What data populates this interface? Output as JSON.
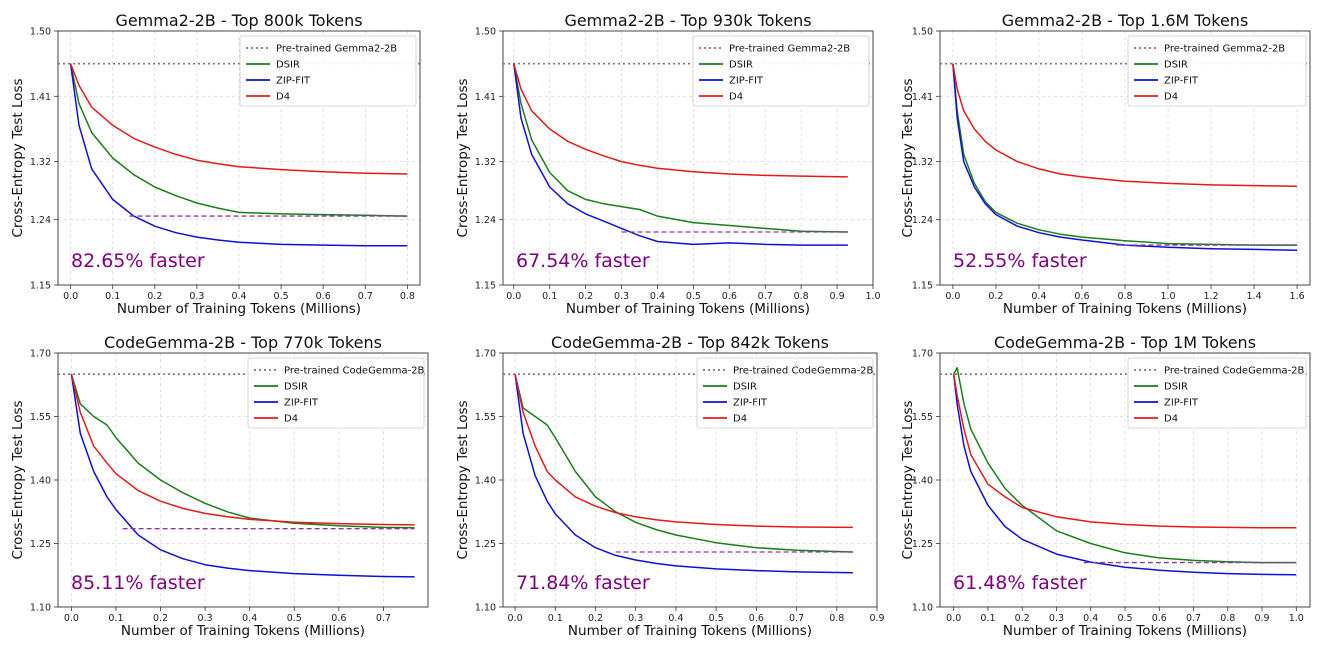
{
  "ylabel": "Cross-Entropy Test Loss",
  "xlabel": "Number of Training Tokens (Millions)",
  "colors": {
    "dsir": "#1a7f1a",
    "zipfit": "#1010d8",
    "d4": "#e61a1a",
    "baseline": "#777777",
    "marker": "#8e3a9e",
    "annotation": "#800080"
  },
  "chart_data": [
    {
      "type": "line",
      "title": "Gemma2-2B - Top 800k Tokens",
      "xlabel": "Number of Training Tokens (Millions)",
      "ylabel": "Cross-Entropy Test Loss",
      "xlim": [
        -0.03,
        0.83
      ],
      "ylim": [
        1.15,
        1.5
      ],
      "xticks": [
        "0.0",
        "0.1",
        "0.2",
        "0.3",
        "0.4",
        "0.5",
        "0.6",
        "0.7",
        "0.8"
      ],
      "yticks": [
        "1.15",
        "1.24",
        "1.32",
        "1.41",
        "1.50"
      ],
      "grid": true,
      "legend_position": "top-right",
      "baseline": {
        "name": "Pre-trained Gemma2-2B",
        "value": 1.455
      },
      "speedup": {
        "label": "82.65% faster",
        "y": 1.245,
        "x_start": 0.14,
        "x_end": 0.8
      },
      "series": [
        {
          "name": "DSIR",
          "color": "#1a7f1a",
          "x": [
            0,
            0.02,
            0.05,
            0.1,
            0.15,
            0.2,
            0.25,
            0.3,
            0.35,
            0.4,
            0.5,
            0.6,
            0.7,
            0.8
          ],
          "y": [
            1.455,
            1.4,
            1.36,
            1.325,
            1.302,
            1.285,
            1.273,
            1.263,
            1.256,
            1.25,
            1.248,
            1.247,
            1.246,
            1.245
          ]
        },
        {
          "name": "ZIP-FIT",
          "color": "#1010d8",
          "x": [
            0,
            0.02,
            0.05,
            0.1,
            0.15,
            0.2,
            0.25,
            0.3,
            0.35,
            0.4,
            0.5,
            0.6,
            0.7,
            0.8
          ],
          "y": [
            1.455,
            1.37,
            1.31,
            1.268,
            1.245,
            1.231,
            1.222,
            1.216,
            1.212,
            1.209,
            1.206,
            1.205,
            1.204,
            1.204
          ]
        },
        {
          "name": "D4",
          "color": "#e61a1a",
          "x": [
            0,
            0.02,
            0.05,
            0.1,
            0.15,
            0.2,
            0.25,
            0.3,
            0.35,
            0.4,
            0.5,
            0.6,
            0.7,
            0.8
          ],
          "y": [
            1.455,
            1.425,
            1.395,
            1.37,
            1.352,
            1.34,
            1.33,
            1.322,
            1.317,
            1.313,
            1.309,
            1.306,
            1.304,
            1.303
          ]
        }
      ]
    },
    {
      "type": "line",
      "title": "Gemma2-2B - Top 930k Tokens",
      "xlabel": "Number of Training Tokens (Millions)",
      "ylabel": "Cross-Entropy Test Loss",
      "xlim": [
        -0.03,
        1.0
      ],
      "ylim": [
        1.15,
        1.5
      ],
      "xticks": [
        "0.0",
        "0.1",
        "0.2",
        "0.3",
        "0.4",
        "0.5",
        "0.6",
        "0.7",
        "0.8",
        "0.9",
        "1.0"
      ],
      "yticks": [
        "1.15",
        "1.24",
        "1.32",
        "1.41",
        "1.50"
      ],
      "grid": true,
      "legend_position": "top-right",
      "baseline": {
        "name": "Pre-trained Gemma2-2B",
        "value": 1.455
      },
      "speedup": {
        "label": "67.54% faster",
        "y": 1.223,
        "x_start": 0.3,
        "x_end": 0.93
      },
      "series": [
        {
          "name": "DSIR",
          "color": "#1a7f1a",
          "x": [
            0,
            0.02,
            0.05,
            0.1,
            0.15,
            0.2,
            0.25,
            0.3,
            0.35,
            0.4,
            0.5,
            0.6,
            0.7,
            0.8,
            0.93
          ],
          "y": [
            1.455,
            1.4,
            1.35,
            1.305,
            1.28,
            1.268,
            1.262,
            1.258,
            1.254,
            1.245,
            1.236,
            1.232,
            1.228,
            1.224,
            1.223
          ]
        },
        {
          "name": "ZIP-FIT",
          "color": "#1010d8",
          "x": [
            0,
            0.02,
            0.05,
            0.1,
            0.15,
            0.2,
            0.25,
            0.3,
            0.35,
            0.4,
            0.5,
            0.6,
            0.7,
            0.8,
            0.93
          ],
          "y": [
            1.455,
            1.38,
            1.33,
            1.285,
            1.262,
            1.248,
            1.238,
            1.228,
            1.218,
            1.21,
            1.206,
            1.208,
            1.206,
            1.205,
            1.205
          ]
        },
        {
          "name": "D4",
          "color": "#e61a1a",
          "x": [
            0,
            0.02,
            0.05,
            0.1,
            0.15,
            0.2,
            0.25,
            0.3,
            0.35,
            0.4,
            0.5,
            0.6,
            0.7,
            0.8,
            0.93
          ],
          "y": [
            1.455,
            1.42,
            1.39,
            1.365,
            1.348,
            1.337,
            1.328,
            1.32,
            1.315,
            1.311,
            1.306,
            1.303,
            1.301,
            1.3,
            1.299
          ]
        }
      ]
    },
    {
      "type": "line",
      "title": "Gemma2-2B - Top 1.6M Tokens",
      "xlabel": "Number of Training Tokens (Millions)",
      "ylabel": "Cross-Entropy Test Loss",
      "xlim": [
        -0.06,
        1.66
      ],
      "ylim": [
        1.15,
        1.5
      ],
      "xticks": [
        "0.0",
        "0.2",
        "0.4",
        "0.6",
        "0.8",
        "1.0",
        "1.2",
        "1.4",
        "1.6"
      ],
      "yticks": [
        "1.15",
        "1.24",
        "1.32",
        "1.41",
        "1.50"
      ],
      "grid": true,
      "legend_position": "top-right",
      "baseline": {
        "name": "Pre-trained Gemma2-2B",
        "value": 1.455
      },
      "speedup": {
        "label": "52.55% faster",
        "y": 1.205,
        "x_start": 0.76,
        "x_end": 1.6
      },
      "series": [
        {
          "name": "DSIR",
          "color": "#1a7f1a",
          "x": [
            0,
            0.02,
            0.05,
            0.1,
            0.15,
            0.2,
            0.3,
            0.4,
            0.5,
            0.6,
            0.8,
            1.0,
            1.2,
            1.4,
            1.6
          ],
          "y": [
            1.455,
            1.39,
            1.33,
            1.29,
            1.265,
            1.25,
            1.235,
            1.226,
            1.22,
            1.216,
            1.211,
            1.207,
            1.206,
            1.205,
            1.205
          ]
        },
        {
          "name": "ZIP-FIT",
          "color": "#1010d8",
          "x": [
            0,
            0.02,
            0.05,
            0.1,
            0.15,
            0.2,
            0.3,
            0.4,
            0.5,
            0.6,
            0.8,
            1.0,
            1.2,
            1.4,
            1.6
          ],
          "y": [
            1.455,
            1.38,
            1.32,
            1.285,
            1.262,
            1.247,
            1.231,
            1.222,
            1.216,
            1.212,
            1.205,
            1.202,
            1.2,
            1.199,
            1.198
          ]
        },
        {
          "name": "D4",
          "color": "#e61a1a",
          "x": [
            0,
            0.02,
            0.05,
            0.1,
            0.15,
            0.2,
            0.3,
            0.4,
            0.5,
            0.6,
            0.8,
            1.0,
            1.2,
            1.4,
            1.6
          ],
          "y": [
            1.455,
            1.42,
            1.39,
            1.365,
            1.348,
            1.336,
            1.32,
            1.31,
            1.303,
            1.299,
            1.293,
            1.29,
            1.288,
            1.287,
            1.286
          ]
        }
      ]
    },
    {
      "type": "line",
      "title": "CodeGemma-2B - Top 770k Tokens",
      "xlabel": "Number of Training Tokens (Millions)",
      "ylabel": "Cross-Entropy Test Loss",
      "xlim": [
        -0.03,
        0.8
      ],
      "ylim": [
        1.1,
        1.7
      ],
      "xticks": [
        "0.0",
        "0.1",
        "0.2",
        "0.3",
        "0.4",
        "0.5",
        "0.6",
        "0.7"
      ],
      "yticks": [
        "1.10",
        "1.25",
        "1.40",
        "1.55",
        "1.70"
      ],
      "grid": true,
      "legend_position": "top-right",
      "baseline": {
        "name": "Pre-trained CodeGemma-2B",
        "value": 1.65
      },
      "speedup": {
        "label": "85.11% faster",
        "y": 1.285,
        "x_start": 0.115,
        "x_end": 0.77
      },
      "series": [
        {
          "name": "DSIR",
          "color": "#1a7f1a",
          "x": [
            0,
            0.02,
            0.05,
            0.08,
            0.1,
            0.15,
            0.2,
            0.25,
            0.3,
            0.35,
            0.4,
            0.5,
            0.6,
            0.7,
            0.77
          ],
          "y": [
            1.65,
            1.58,
            1.55,
            1.53,
            1.5,
            1.44,
            1.4,
            1.37,
            1.345,
            1.325,
            1.31,
            1.298,
            1.292,
            1.288,
            1.287
          ]
        },
        {
          "name": "ZIP-FIT",
          "color": "#1010d8",
          "x": [
            0,
            0.02,
            0.05,
            0.08,
            0.1,
            0.15,
            0.2,
            0.25,
            0.3,
            0.35,
            0.4,
            0.5,
            0.6,
            0.7,
            0.77
          ],
          "y": [
            1.65,
            1.51,
            1.42,
            1.36,
            1.33,
            1.27,
            1.235,
            1.214,
            1.2,
            1.192,
            1.186,
            1.179,
            1.175,
            1.172,
            1.171
          ]
        },
        {
          "name": "D4",
          "color": "#e61a1a",
          "x": [
            0,
            0.02,
            0.05,
            0.08,
            0.1,
            0.15,
            0.2,
            0.25,
            0.3,
            0.35,
            0.4,
            0.5,
            0.6,
            0.7,
            0.77
          ],
          "y": [
            1.65,
            1.56,
            1.48,
            1.44,
            1.415,
            1.375,
            1.35,
            1.333,
            1.321,
            1.313,
            1.307,
            1.3,
            1.297,
            1.295,
            1.294
          ]
        }
      ]
    },
    {
      "type": "line",
      "title": "CodeGemma-2B - Top 842k Tokens",
      "xlabel": "Number of Training Tokens (Millions)",
      "ylabel": "Cross-Entropy Test Loss",
      "xlim": [
        -0.03,
        0.9
      ],
      "ylim": [
        1.1,
        1.7
      ],
      "xticks": [
        "0.0",
        "0.1",
        "0.2",
        "0.3",
        "0.4",
        "0.5",
        "0.6",
        "0.7",
        "0.8",
        "0.9"
      ],
      "yticks": [
        "1.10",
        "1.25",
        "1.40",
        "1.55",
        "1.70"
      ],
      "grid": true,
      "legend_position": "top-right",
      "baseline": {
        "name": "Pre-trained CodeGemma-2B",
        "value": 1.65
      },
      "speedup": {
        "label": "71.84% faster",
        "y": 1.23,
        "x_start": 0.25,
        "x_end": 0.84
      },
      "series": [
        {
          "name": "DSIR",
          "color": "#1a7f1a",
          "x": [
            0,
            0.02,
            0.05,
            0.08,
            0.1,
            0.15,
            0.2,
            0.25,
            0.3,
            0.35,
            0.4,
            0.5,
            0.6,
            0.7,
            0.84
          ],
          "y": [
            1.65,
            1.57,
            1.55,
            1.53,
            1.5,
            1.42,
            1.36,
            1.325,
            1.3,
            1.283,
            1.27,
            1.252,
            1.24,
            1.234,
            1.23
          ]
        },
        {
          "name": "ZIP-FIT",
          "color": "#1010d8",
          "x": [
            0,
            0.02,
            0.05,
            0.08,
            0.1,
            0.15,
            0.2,
            0.25,
            0.3,
            0.35,
            0.4,
            0.5,
            0.6,
            0.7,
            0.84
          ],
          "y": [
            1.65,
            1.51,
            1.41,
            1.35,
            1.32,
            1.27,
            1.24,
            1.222,
            1.211,
            1.203,
            1.197,
            1.19,
            1.186,
            1.183,
            1.181
          ]
        },
        {
          "name": "D4",
          "color": "#e61a1a",
          "x": [
            0,
            0.02,
            0.05,
            0.08,
            0.1,
            0.15,
            0.2,
            0.25,
            0.3,
            0.35,
            0.4,
            0.5,
            0.6,
            0.7,
            0.84
          ],
          "y": [
            1.65,
            1.56,
            1.48,
            1.42,
            1.4,
            1.36,
            1.338,
            1.323,
            1.313,
            1.306,
            1.301,
            1.295,
            1.291,
            1.289,
            1.288
          ]
        }
      ]
    },
    {
      "type": "line",
      "title": "CodeGemma-2B - Top 1M Tokens",
      "xlabel": "Number of Training Tokens (Millions)",
      "ylabel": "Cross-Entropy Test Loss",
      "xlim": [
        -0.04,
        1.04
      ],
      "ylim": [
        1.1,
        1.7
      ],
      "xticks": [
        "0.0",
        "0.1",
        "0.2",
        "0.3",
        "0.4",
        "0.5",
        "0.6",
        "0.7",
        "0.8",
        "0.9",
        "1.0"
      ],
      "yticks": [
        "1.10",
        "1.25",
        "1.40",
        "1.55",
        "1.70"
      ],
      "grid": true,
      "legend_position": "top-right",
      "baseline": {
        "name": "Pre-trained CodeGemma-2B",
        "value": 1.65
      },
      "speedup": {
        "label": "61.48% faster",
        "y": 1.205,
        "x_start": 0.38,
        "x_end": 1.0
      },
      "series": [
        {
          "name": "DSIR",
          "color": "#1a7f1a",
          "x": [
            0,
            0.01,
            0.03,
            0.05,
            0.1,
            0.15,
            0.2,
            0.3,
            0.4,
            0.5,
            0.6,
            0.7,
            0.8,
            0.9,
            1.0
          ],
          "y": [
            1.65,
            1.665,
            1.58,
            1.52,
            1.44,
            1.38,
            1.34,
            1.28,
            1.25,
            1.228,
            1.216,
            1.21,
            1.207,
            1.205,
            1.205
          ]
        },
        {
          "name": "ZIP-FIT",
          "color": "#1010d8",
          "x": [
            0,
            0.01,
            0.03,
            0.05,
            0.1,
            0.15,
            0.2,
            0.3,
            0.4,
            0.5,
            0.6,
            0.7,
            0.8,
            0.9,
            1.0
          ],
          "y": [
            1.65,
            1.58,
            1.48,
            1.42,
            1.34,
            1.29,
            1.26,
            1.225,
            1.206,
            1.194,
            1.187,
            1.182,
            1.179,
            1.177,
            1.176
          ]
        },
        {
          "name": "D4",
          "color": "#e61a1a",
          "x": [
            0,
            0.01,
            0.03,
            0.05,
            0.1,
            0.15,
            0.2,
            0.3,
            0.4,
            0.5,
            0.6,
            0.7,
            0.8,
            0.9,
            1.0
          ],
          "y": [
            1.65,
            1.6,
            1.52,
            1.46,
            1.39,
            1.36,
            1.335,
            1.313,
            1.301,
            1.295,
            1.291,
            1.289,
            1.288,
            1.287,
            1.287
          ]
        }
      ]
    }
  ]
}
